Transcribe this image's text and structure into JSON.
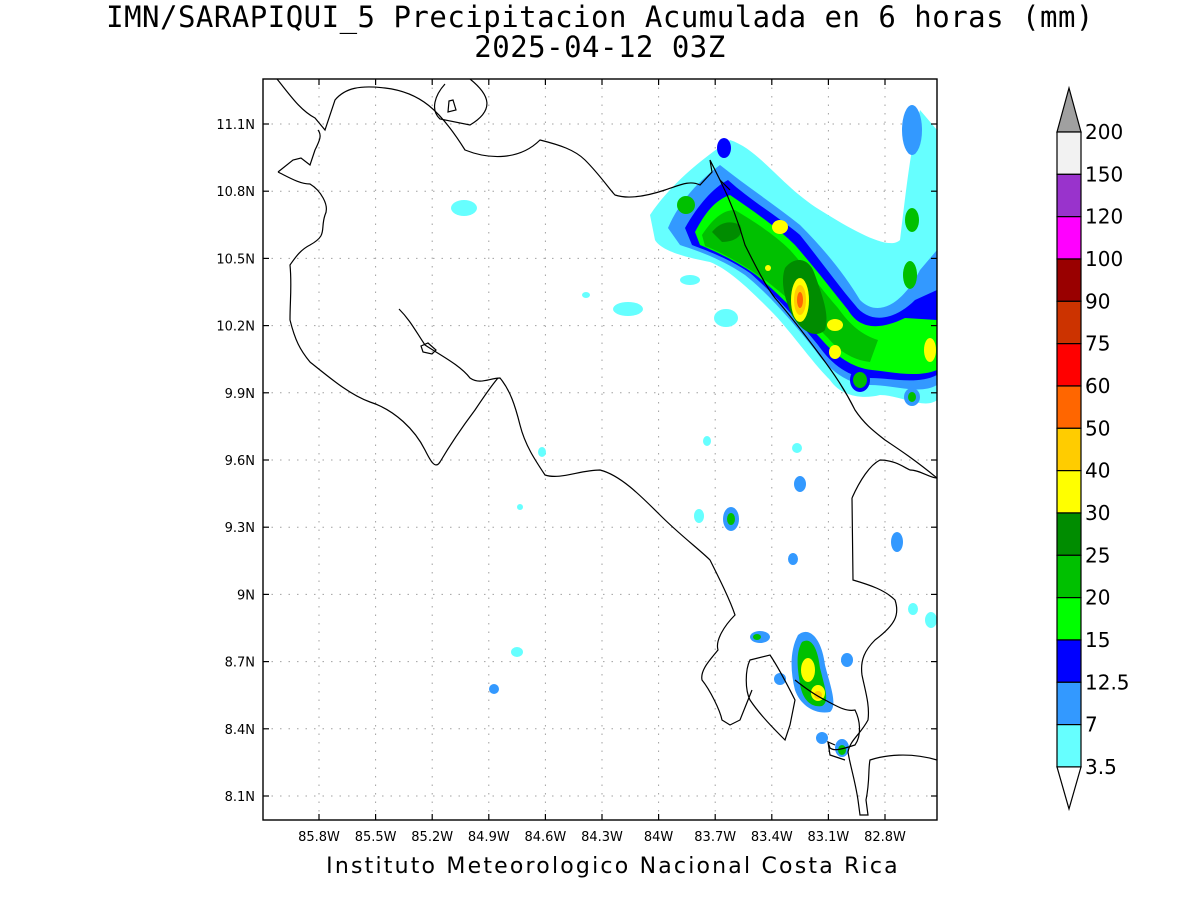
{
  "title": {
    "line1": "IMN/SARAPIQUI_5 Precipitacion Acumulada en 6 horas (mm)",
    "line2": "2025-04-12 03Z"
  },
  "credit": "Instituto Meteorologico Nacional Costa Rica",
  "map": {
    "lon_range": [
      -85.8,
      -82.8
    ],
    "lat_range": [
      8.1,
      11.1
    ],
    "grid": true,
    "lon_ticks": [
      "85.8W",
      "85.5W",
      "85.2W",
      "84.9W",
      "84.6W",
      "84.3W",
      "84W",
      "83.7W",
      "83.4W",
      "83.1W",
      "82.8W"
    ],
    "lat_ticks": [
      "11.1N",
      "10.8N",
      "10.5N",
      "10.2N",
      "9.9N",
      "9.6N",
      "9.3N",
      "9N",
      "8.7N",
      "8.4N",
      "8.1N"
    ]
  },
  "colorbar": {
    "levels": [
      "200",
      "150",
      "120",
      "100",
      "90",
      "75",
      "60",
      "50",
      "40",
      "30",
      "25",
      "20",
      "15",
      "12.5",
      "7",
      "3.5"
    ],
    "colors": [
      "#f2f2f2",
      "#9933cc",
      "#ff00ff",
      "#990000",
      "#cc3300",
      "#ff0000",
      "#ff6600",
      "#ffcc00",
      "#ffff00",
      "#008c00",
      "#00c000",
      "#00ff00",
      "#0000ff",
      "#3399ff",
      "#66ffff"
    ],
    "over_color": "#a0a0a0",
    "under_color": "#ffffff"
  },
  "colors": {
    "coast": "#000000",
    "grid": "#a0a0a0",
    "light_cyan": "#66ffff",
    "light_blue": "#3399ff",
    "blue": "#0000ff",
    "green": "#00ff00",
    "mid_green": "#00c000",
    "dark_green": "#008c00",
    "yellow": "#ffff00",
    "gold": "#ffcc00",
    "orange": "#ff6600",
    "red": "#ff0000"
  }
}
